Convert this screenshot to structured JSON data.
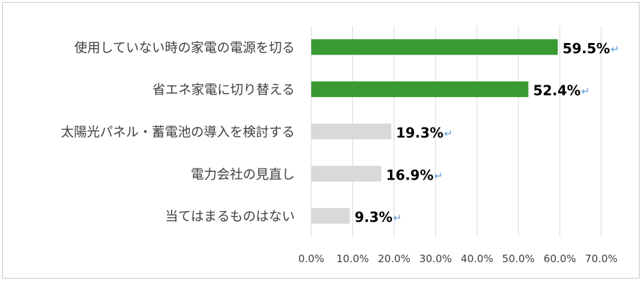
{
  "chart_data": {
    "type": "bar",
    "orientation": "horizontal",
    "categories": [
      "使用していない時の家電の電源を切る",
      "省エネ家電に切り替える",
      "太陽光パネル・蓄電池の導入を検討する",
      "電力会社の見直し",
      "当てはまるものはない"
    ],
    "values": [
      59.5,
      52.4,
      19.3,
      16.9,
      9.3
    ],
    "data_labels": [
      "59.5%",
      "52.4%",
      "19.3%",
      "16.9%",
      "9.3%"
    ],
    "bar_colors": [
      "#3a9a32",
      "#3a9a32",
      "#d9d9d9",
      "#d9d9d9",
      "#d9d9d9"
    ],
    "xlim": [
      0,
      70
    ],
    "xticks": [
      0,
      10,
      20,
      30,
      40,
      50,
      60,
      70
    ],
    "xtick_labels": [
      "0.0%",
      "10.0%",
      "20.0%",
      "30.0%",
      "40.0%",
      "50.0%",
      "60.0%",
      "70.0%"
    ],
    "grid": "vertical",
    "gridline_color": "#d9d9d9",
    "title": "",
    "xlabel": "",
    "ylabel": "",
    "legend": "none"
  }
}
